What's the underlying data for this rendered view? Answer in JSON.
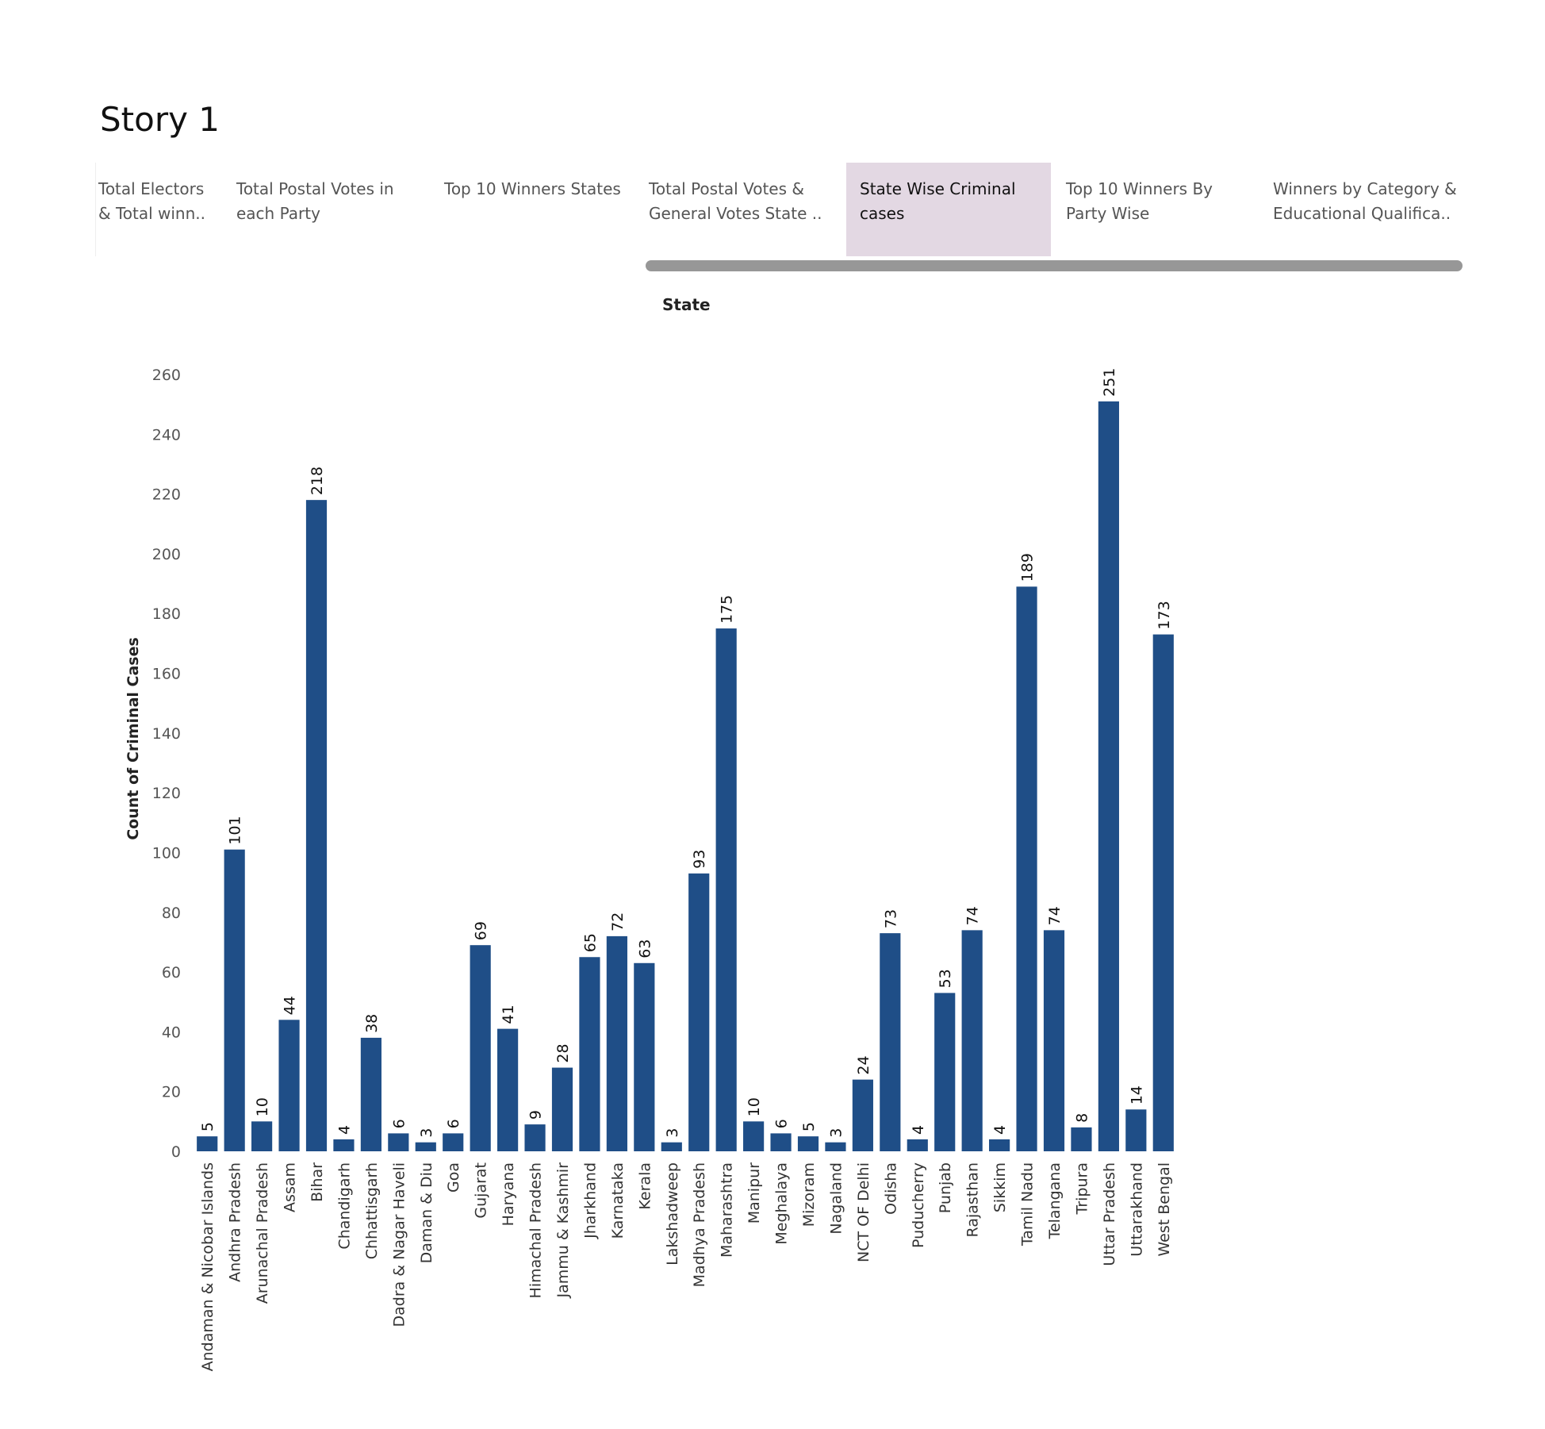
{
  "story": {
    "title": "Story 1"
  },
  "tabs": [
    {
      "line1": "Total Electors",
      "line2": "& Total winn.."
    },
    {
      "line1": "Total Postal Votes in",
      "line2": "each Party"
    },
    {
      "line1": "Top 10 Winners States",
      "line2": ""
    },
    {
      "line1": "Total Postal Votes &",
      "line2": "General Votes State .."
    },
    {
      "line1": "State Wise Criminal",
      "line2": "cases",
      "active": true
    },
    {
      "line1": "Top 10 Winners By",
      "line2": "Party Wise"
    },
    {
      "line1": "Winners by Category &",
      "line2": "Educational Qualifica.."
    }
  ],
  "colors": {
    "bar": "#1f4e87",
    "active_tab": "#e3d8e3",
    "scrollbar": "#979797"
  },
  "chart_data": {
    "type": "bar",
    "title": "State",
    "xlabel": "",
    "ylabel": "Count of Criminal Cases",
    "ylim": [
      0,
      260
    ],
    "yticks": [
      0,
      20,
      40,
      60,
      80,
      100,
      120,
      140,
      160,
      180,
      200,
      220,
      240,
      260
    ],
    "grid": false,
    "categories": [
      "Andaman & Nicobar Islands",
      "Andhra Pradesh",
      "Arunachal Pradesh",
      "Assam",
      "Bihar",
      "Chandigarh",
      "Chhattisgarh",
      "Dadra & Nagar Haveli",
      "Daman & Diu",
      "Goa",
      "Gujarat",
      "Haryana",
      "Himachal Pradesh",
      "Jammu & Kashmir",
      "Jharkhand",
      "Karnataka",
      "Kerala",
      "Lakshadweep",
      "Madhya Pradesh",
      "Maharashtra",
      "Manipur",
      "Meghalaya",
      "Mizoram",
      "Nagaland",
      "NCT OF Delhi",
      "Odisha",
      "Puducherry",
      "Punjab",
      "Rajasthan",
      "Sikkim",
      "Tamil Nadu",
      "Telangana",
      "Tripura",
      "Uttar Pradesh",
      "Uttarakhand",
      "West Bengal"
    ],
    "values": [
      5,
      101,
      10,
      44,
      218,
      4,
      38,
      6,
      3,
      6,
      69,
      41,
      9,
      28,
      65,
      72,
      63,
      3,
      93,
      175,
      10,
      6,
      5,
      3,
      24,
      73,
      4,
      53,
      74,
      4,
      189,
      74,
      8,
      251,
      14,
      173
    ]
  }
}
